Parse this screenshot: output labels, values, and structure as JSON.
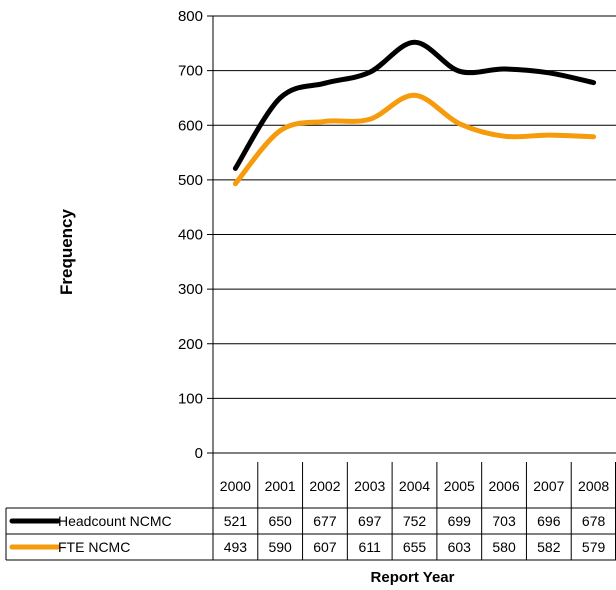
{
  "chart_data": {
    "type": "line",
    "categories": [
      "2000",
      "2001",
      "2002",
      "2003",
      "2004",
      "2005",
      "2006",
      "2007",
      "2008"
    ],
    "series": [
      {
        "name": "Headcount NCMC",
        "color": "#000000",
        "values": [
          521,
          650,
          677,
          697,
          752,
          699,
          703,
          696,
          678
        ]
      },
      {
        "name": "FTE NCMC",
        "color": "#f59b0c",
        "values": [
          493,
          590,
          607,
          611,
          655,
          603,
          580,
          582,
          579
        ]
      }
    ],
    "xlabel": "Report Year",
    "ylabel": "Frequency",
    "ylim": [
      0,
      800
    ],
    "yticks": [
      "0",
      "100",
      "200",
      "300",
      "400",
      "500",
      "600",
      "700",
      "800"
    ],
    "grid": true,
    "legend": "data-table"
  }
}
